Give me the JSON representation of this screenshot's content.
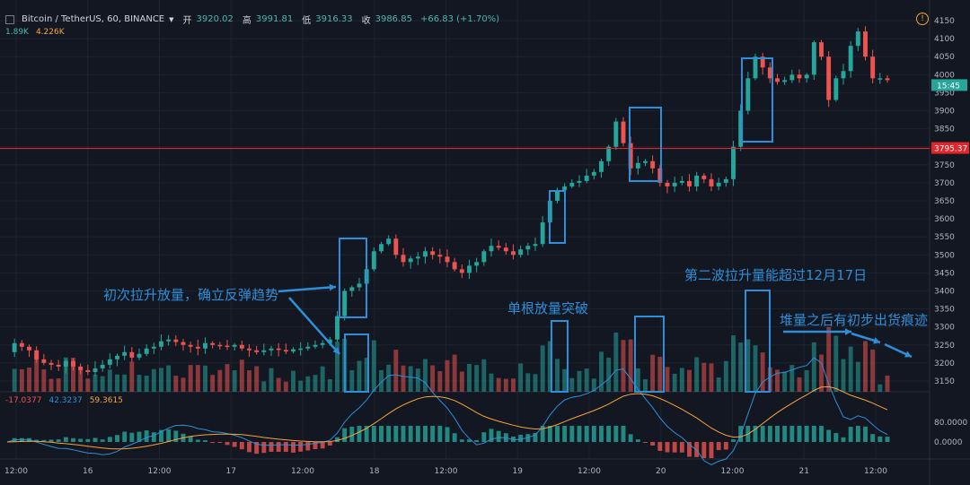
{
  "header": {
    "symbol": "Bitcoin / TetherUS, 60, BINANCE",
    "open_label": "开",
    "open": "3920.02",
    "high_label": "高",
    "high": "3991.81",
    "low_label": "低",
    "low": "3916.33",
    "close_label": "收",
    "close": "3986.85",
    "change": "+66.83 (+1.70%)",
    "ma_a": "1.89K",
    "ma_b": "4.226K"
  },
  "colors": {
    "up": "#26a69a",
    "down": "#ef5350",
    "annotation": "#2e8fd8",
    "hline": "#e0262a",
    "macd_fast": "#2e8fd8",
    "macd_slow": "#f6a43a"
  },
  "macd": {
    "v1": "-17.0377",
    "v2": "42.3237",
    "v3": "59.3615"
  },
  "chart_data": {
    "type": "candlestick",
    "price_axis": {
      "ticks": [
        4150,
        4100,
        4050,
        4000,
        3950,
        3900,
        3850,
        3800,
        3750,
        3700,
        3650,
        3600,
        3550,
        3500,
        3450,
        3400,
        3350,
        3300,
        3250,
        3200,
        3150
      ],
      "range": [
        3120,
        4170
      ]
    },
    "current_price_label": "15:45",
    "current_price": 3970,
    "horizontal_line": {
      "value": 3795.37,
      "label": "3795.37"
    },
    "macd_axis": {
      "ticks": [
        "80.0000",
        "40.0000",
        "0.0000"
      ]
    },
    "time_axis": [
      "12:00",
      "16",
      "12:00",
      "17",
      "12:00",
      "18",
      "12:00",
      "19",
      "12:00",
      "20",
      "12:00",
      "21",
      "12:00"
    ],
    "annotations": [
      "初次拉升放量，确立反弹趋势",
      "单根放量突破",
      "第二波拉升量能超过12月17日",
      "堆量之后有初步出货痕迹"
    ],
    "price_path": [
      3230,
      3255,
      3245,
      3235,
      3210,
      3200,
      3195,
      3190,
      3205,
      3190,
      3180,
      3175,
      3185,
      3195,
      3210,
      3220,
      3230,
      3215,
      3225,
      3240,
      3245,
      3260,
      3265,
      3258,
      3250,
      3245,
      3240,
      3255,
      3250,
      3248,
      3245,
      3250,
      3240,
      3235,
      3230,
      3235,
      3240,
      3236,
      3232,
      3238,
      3240,
      3245,
      3250,
      3255,
      3265,
      3330,
      3400,
      3410,
      3420,
      3460,
      3510,
      3530,
      3545,
      3500,
      3480,
      3490,
      3495,
      3510,
      3500,
      3495,
      3480,
      3460,
      3450,
      3470,
      3480,
      3510,
      3525,
      3520,
      3510,
      3500,
      3515,
      3525,
      3530,
      3590,
      3650,
      3680,
      3690,
      3700,
      3705,
      3720,
      3730,
      3760,
      3800,
      3870,
      3810,
      3740,
      3755,
      3760,
      3740,
      3700,
      3690,
      3700,
      3705,
      3690,
      3720,
      3710,
      3690,
      3700,
      3710,
      3800,
      3900,
      3990,
      4050,
      4020,
      3990,
      3980,
      3985,
      4000,
      3990,
      4000,
      4090,
      4050,
      3930,
      3990,
      4010,
      4080,
      4120,
      4050,
      3990,
      3990,
      3985
    ]
  }
}
